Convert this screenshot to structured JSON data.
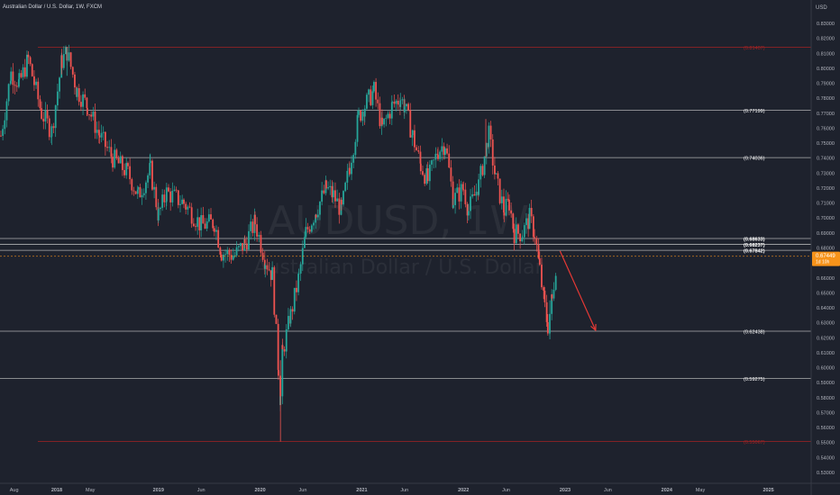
{
  "header": {
    "title": "Australian Dollar / U.S. Dollar, 1W, FXCM"
  },
  "watermark": {
    "symbol": "AUDUSD, 1W",
    "description": "Australian Dollar / U.S. Dollar"
  },
  "price_axis": {
    "currency": "USD",
    "current_price": "0.67449",
    "countdown": "1d 10h"
  },
  "colors": {
    "background": "#1e222d",
    "up": "#26a69a",
    "down": "#ef5350",
    "level_line": "#c8c8c8",
    "fib_line": "#b22222",
    "arrow": "#e53935",
    "current_price": "#f7931a",
    "axis_text": "#b2b5be"
  },
  "chart_data": {
    "type": "candlestick",
    "title": "Australian Dollar / U.S. Dollar, 1W, FXCM",
    "ylim": [
      0.525,
      0.841
    ],
    "y_tick_labels": [
      "0.53000",
      "0.54000",
      "0.55000",
      "0.56000",
      "0.57000",
      "0.58000",
      "0.59000",
      "0.60000",
      "0.61000",
      "0.62000",
      "0.63000",
      "0.64000",
      "0.65000",
      "0.66000",
      "0.67000",
      "0.68000",
      "0.69000",
      "0.70000",
      "0.71000",
      "0.72000",
      "0.73000",
      "0.74000",
      "0.75000",
      "0.76000",
      "0.77000",
      "0.78000",
      "0.79000",
      "0.80000",
      "0.81000",
      "0.82000",
      "0.83000"
    ],
    "x_tick_labels": [
      "Aug",
      "2018",
      "May",
      "2019",
      "Jun",
      "2020",
      "Jun",
      "2021",
      "Jun",
      "2022",
      "Jun",
      "2023",
      "Jun",
      "2024",
      "May",
      "2025"
    ],
    "x_tick_dates": [
      2017.58,
      2018.0,
      2018.33,
      2019.0,
      2019.42,
      2020.0,
      2020.42,
      2021.0,
      2021.42,
      2022.0,
      2022.42,
      2023.0,
      2023.42,
      2024.0,
      2024.33,
      2025.0
    ],
    "horizontal_levels": [
      {
        "label": "(0.81407)",
        "value": 0.81407,
        "kind": "fib"
      },
      {
        "label": "(0.77199)",
        "value": 0.77199,
        "kind": "level"
      },
      {
        "label": "(0.74036)",
        "value": 0.74036,
        "kind": "level"
      },
      {
        "label": "(0.68633)",
        "value": 0.68633,
        "kind": "level"
      },
      {
        "label": "(0.68237)",
        "value": 0.68237,
        "kind": "level"
      },
      {
        "label": "(0.67842)",
        "value": 0.67842,
        "kind": "level"
      },
      {
        "label": "(0.62438)",
        "value": 0.62438,
        "kind": "level"
      },
      {
        "label": "(0.59275)",
        "value": 0.59275,
        "kind": "level"
      },
      {
        "label": "(0.55067)",
        "value": 0.55067,
        "kind": "fib"
      }
    ],
    "current_price": 0.67449,
    "projection_arrow": {
      "from": {
        "date": 2022.95,
        "price": 0.678
      },
      "to": {
        "date": 2023.3,
        "price": 0.625
      }
    },
    "price_path": [
      {
        "date": 2017.45,
        "price": 0.755
      },
      {
        "date": 2017.55,
        "price": 0.797
      },
      {
        "date": 2017.63,
        "price": 0.79
      },
      {
        "date": 2017.72,
        "price": 0.806
      },
      {
        "date": 2017.85,
        "price": 0.77
      },
      {
        "date": 2017.95,
        "price": 0.758
      },
      {
        "date": 2018.05,
        "price": 0.805
      },
      {
        "date": 2018.1,
        "price": 0.811
      },
      {
        "date": 2018.2,
        "price": 0.785
      },
      {
        "date": 2018.3,
        "price": 0.775
      },
      {
        "date": 2018.42,
        "price": 0.755
      },
      {
        "date": 2018.55,
        "price": 0.74
      },
      {
        "date": 2018.7,
        "price": 0.73
      },
      {
        "date": 2018.8,
        "price": 0.715
      },
      {
        "date": 2018.92,
        "price": 0.732
      },
      {
        "date": 2019.0,
        "price": 0.702
      },
      {
        "date": 2019.08,
        "price": 0.717
      },
      {
        "date": 2019.25,
        "price": 0.71
      },
      {
        "date": 2019.42,
        "price": 0.695
      },
      {
        "date": 2019.55,
        "price": 0.697
      },
      {
        "date": 2019.62,
        "price": 0.677
      },
      {
        "date": 2019.75,
        "price": 0.675
      },
      {
        "date": 2019.85,
        "price": 0.683
      },
      {
        "date": 2019.95,
        "price": 0.697
      },
      {
        "date": 2020.05,
        "price": 0.672
      },
      {
        "date": 2020.12,
        "price": 0.662
      },
      {
        "date": 2020.18,
        "price": 0.6
      },
      {
        "date": 2020.2,
        "price": 0.58
      },
      {
        "date": 2020.22,
        "price": 0.61
      },
      {
        "date": 2020.3,
        "price": 0.635
      },
      {
        "date": 2020.38,
        "price": 0.66
      },
      {
        "date": 2020.45,
        "price": 0.69
      },
      {
        "date": 2020.55,
        "price": 0.705
      },
      {
        "date": 2020.65,
        "price": 0.72
      },
      {
        "date": 2020.72,
        "price": 0.715
      },
      {
        "date": 2020.8,
        "price": 0.705
      },
      {
        "date": 2020.88,
        "price": 0.735
      },
      {
        "date": 2020.97,
        "price": 0.768
      },
      {
        "date": 2021.03,
        "price": 0.775
      },
      {
        "date": 2021.12,
        "price": 0.785
      },
      {
        "date": 2021.2,
        "price": 0.76
      },
      {
        "date": 2021.3,
        "price": 0.775
      },
      {
        "date": 2021.38,
        "price": 0.78
      },
      {
        "date": 2021.42,
        "price": 0.775
      },
      {
        "date": 2021.5,
        "price": 0.755
      },
      {
        "date": 2021.58,
        "price": 0.735
      },
      {
        "date": 2021.65,
        "price": 0.725
      },
      {
        "date": 2021.75,
        "price": 0.745
      },
      {
        "date": 2021.82,
        "price": 0.75
      },
      {
        "date": 2021.9,
        "price": 0.712
      },
      {
        "date": 2022.0,
        "price": 0.72
      },
      {
        "date": 2022.05,
        "price": 0.705
      },
      {
        "date": 2022.15,
        "price": 0.722
      },
      {
        "date": 2022.25,
        "price": 0.755
      },
      {
        "date": 2022.32,
        "price": 0.725
      },
      {
        "date": 2022.4,
        "price": 0.705
      },
      {
        "date": 2022.45,
        "price": 0.71
      },
      {
        "date": 2022.5,
        "price": 0.69
      },
      {
        "date": 2022.58,
        "price": 0.69
      },
      {
        "date": 2022.65,
        "price": 0.7
      },
      {
        "date": 2022.7,
        "price": 0.69
      },
      {
        "date": 2022.75,
        "price": 0.665
      },
      {
        "date": 2022.8,
        "price": 0.64
      },
      {
        "date": 2022.83,
        "price": 0.628
      },
      {
        "date": 2022.87,
        "price": 0.645
      },
      {
        "date": 2022.92,
        "price": 0.675
      }
    ]
  }
}
